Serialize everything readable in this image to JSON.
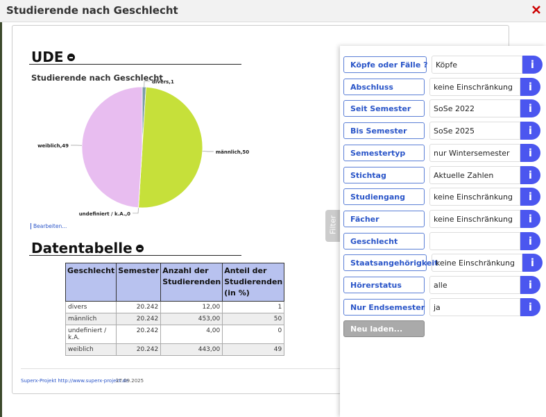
{
  "header": {
    "title": "Studierende nach Geschlecht"
  },
  "report": {
    "heading": "UDE",
    "edit_link": "Bearbeiten...",
    "table_heading": "Datentabelle",
    "table": {
      "columns": [
        "Geschlecht",
        "Semester",
        "Anzahl der Studierenden",
        "Anteil der Studierenden (in %)"
      ],
      "rows": [
        [
          "divers",
          "20.242",
          "12,00",
          "1"
        ],
        [
          "männlich",
          "20.242",
          "453,00",
          "50"
        ],
        [
          "undefiniert / k.A.",
          "20.242",
          "4,00",
          "0"
        ],
        [
          "weiblich",
          "20.242",
          "443,00",
          "49"
        ]
      ]
    },
    "footer": {
      "link": "Superx-Projekt http://www.superx-projekt.de",
      "date": "27.09.2025"
    }
  },
  "chart_data": {
    "type": "pie",
    "title": "Studierende nach Geschlecht",
    "values": [
      1,
      50,
      0,
      49
    ],
    "value_labels": [
      "divers,1",
      "männlich,50",
      "undefiniert / k.A.,0",
      "weiblich,49"
    ],
    "colors": [
      "#7c9ea8",
      "#c6e03a",
      "#666666",
      "#e8bdf0"
    ]
  },
  "filter": {
    "tab": "Filter",
    "info_icon": "i",
    "button": "Neu laden...",
    "fields": [
      {
        "label": "Köpfe oder Fälle ?",
        "value": "Köpfe"
      },
      {
        "label": "Abschluss",
        "value": "keine Einschränkung"
      },
      {
        "label": "Seit Semester",
        "value": "SoSe 2022"
      },
      {
        "label": "Bis Semester",
        "value": "SoSe 2025"
      },
      {
        "label": "Semestertyp",
        "value": "nur Wintersemester"
      },
      {
        "label": "Stichtag",
        "value": "Aktuelle Zahlen"
      },
      {
        "label": "Studiengang",
        "value": "keine Einschränkung"
      },
      {
        "label": "Fächer",
        "value": "keine Einschränkung"
      },
      {
        "label": "Geschlecht"
      },
      {
        "label": "Staatsangehörigkeit",
        "value": "keine Einschränkung"
      },
      {
        "label": "Hörerstatus",
        "value": "alle"
      },
      {
        "label": "Nur Endsemester",
        "value": "ja"
      }
    ]
  }
}
